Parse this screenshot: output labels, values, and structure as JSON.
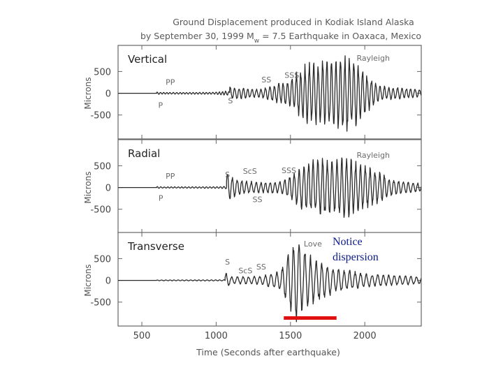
{
  "chart_data": {
    "type": "line",
    "title": [
      "Ground Displacement produced in Kodiak Island Alaska",
      "by September 30, 1999 M",
      "w",
      " = 7.5 Earthquake in Oaxaca, Mexico"
    ],
    "xlabel": "Time (Seconds after earthquake)",
    "xlim": [
      340,
      2380
    ],
    "xticks": [
      "500",
      "1000",
      "1500",
      "2000"
    ],
    "xtick_values": [
      500,
      1000,
      1500,
      2000
    ],
    "ylabel": "Microns",
    "ylim": [
      -1050,
      1100
    ],
    "yticks": [
      "500",
      "0",
      "-500"
    ],
    "ytick_values": [
      500,
      0,
      -500
    ],
    "panels": [
      {
        "name": "Vertical",
        "phases": [
          {
            "label": "P",
            "x": 610,
            "y": -340
          },
          {
            "label": "PP",
            "x": 660,
            "y": 190
          },
          {
            "label": "S",
            "x": 1080,
            "y": -230
          },
          {
            "label": "SS",
            "x": 1305,
            "y": 250
          },
          {
            "label": "SSS",
            "x": 1460,
            "y": 350
          },
          {
            "label": "Rayleigh",
            "x": 1945,
            "y": 750
          }
        ],
        "segments": [
          {
            "t0": 600,
            "period": 22,
            "amp": [
              [
                600,
                30
              ],
              [
                640,
                20
              ],
              [
                1000,
                25
              ],
              [
                1080,
                60
              ]
            ]
          },
          {
            "t0": 1090,
            "period": 30,
            "amp": [
              [
                1090,
                160
              ],
              [
                1120,
                140
              ],
              [
                1300,
                100
              ],
              [
                1420,
                240
              ],
              [
                1470,
                280
              ],
              [
                1600,
                700
              ],
              [
                1800,
                850
              ],
              [
                1900,
                950
              ],
              [
                2000,
                500
              ],
              [
                2100,
                180
              ],
              [
                2380,
                90
              ]
            ]
          }
        ]
      },
      {
        "name": "Radial",
        "phases": [
          {
            "label": "P",
            "x": 612,
            "y": -300
          },
          {
            "label": "PP",
            "x": 660,
            "y": 200
          },
          {
            "label": "S",
            "x": 1060,
            "y": 230
          },
          {
            "label": "ScS",
            "x": 1180,
            "y": 310
          },
          {
            "label": "SS",
            "x": 1245,
            "y": -340
          },
          {
            "label": "SSS",
            "x": 1440,
            "y": 330
          },
          {
            "label": "Rayleigh",
            "x": 1945,
            "y": 680
          }
        ],
        "segments": [
          {
            "t0": 600,
            "period": 24,
            "amp": [
              [
                600,
                25
              ],
              [
                640,
                15
              ],
              [
                1000,
                20
              ],
              [
                1060,
                30
              ]
            ]
          },
          {
            "t0": 1070,
            "period": 32,
            "amp": [
              [
                1070,
                380
              ],
              [
                1110,
                260
              ],
              [
                1200,
                160
              ],
              [
                1300,
                130
              ],
              [
                1450,
                160
              ],
              [
                1600,
                600
              ],
              [
                1700,
                700
              ],
              [
                1900,
                700
              ],
              [
                2050,
                450
              ],
              [
                2200,
                180
              ],
              [
                2380,
                100
              ]
            ]
          }
        ]
      },
      {
        "name": "Transverse",
        "phases": [
          {
            "label": "S",
            "x": 1060,
            "y": 360
          },
          {
            "label": "ScS",
            "x": 1150,
            "y": 160
          },
          {
            "label": "SS",
            "x": 1270,
            "y": 250
          },
          {
            "label": "Love",
            "x": 1590,
            "y": 780
          }
        ],
        "segments": [
          {
            "t0": 600,
            "period": 28,
            "amp": [
              [
                600,
                10
              ],
              [
                1050,
                15
              ]
            ]
          },
          {
            "t0": 1060,
            "period": 38,
            "amp": [
              [
                1060,
                200
              ],
              [
                1100,
                90
              ],
              [
                1300,
                100
              ],
              [
                1440,
                260
              ],
              [
                1480,
                620
              ],
              [
                1540,
                1000
              ],
              [
                1620,
                620
              ],
              [
                1800,
                320
              ],
              [
                2000,
                160
              ],
              [
                2380,
                90
              ]
            ]
          }
        ]
      }
    ],
    "annotation": {
      "lines": [
        "Notice",
        "dispersion"
      ],
      "color": "#0a1a8c"
    },
    "highlight_bar": {
      "x_range": [
        1455,
        1810
      ],
      "color": "#e01010"
    }
  }
}
